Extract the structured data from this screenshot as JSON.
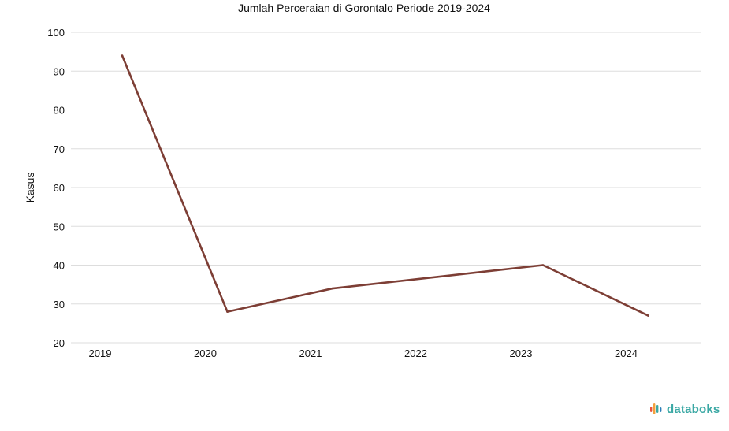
{
  "colors": {
    "line": "#7d3e35",
    "brand_text": "#3aa8a4",
    "brand_mark": [
      "#e8553e",
      "#f2a03d",
      "#3aa8a4",
      "#2c7fb8"
    ]
  },
  "brand": {
    "name": "databoks",
    "icon": "databoks-logo-icon"
  },
  "chart_data": {
    "type": "line",
    "title": "Jumlah Perceraian di Gorontalo Periode 2019-2024",
    "xlabel": "",
    "ylabel": "Kasus",
    "categories": [
      "2019",
      "2020",
      "2021",
      "2022",
      "2023",
      "2024"
    ],
    "series": [
      {
        "values": [
          94,
          28,
          34,
          37,
          40,
          27
        ]
      }
    ],
    "ylim": [
      20,
      100
    ],
    "yticks": [
      20,
      30,
      40,
      50,
      60,
      70,
      80,
      90,
      100
    ],
    "grid": true,
    "legend": "none"
  }
}
